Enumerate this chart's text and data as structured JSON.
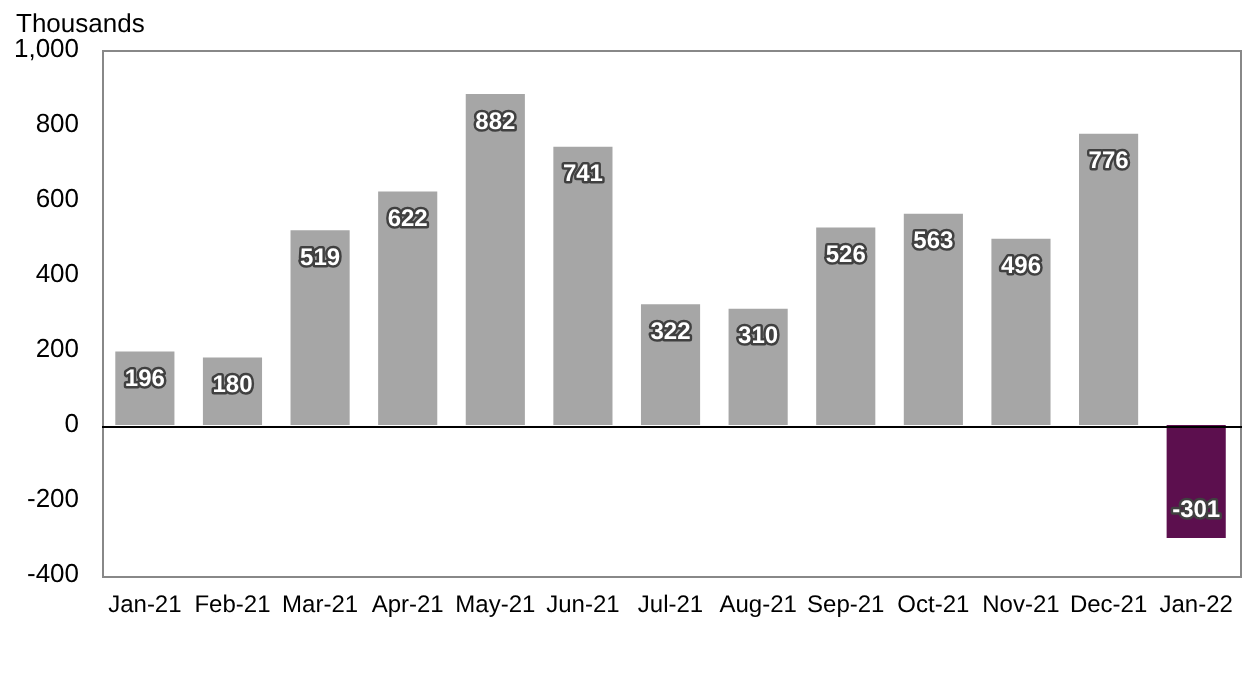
{
  "chart_data": {
    "type": "bar",
    "ylabel": "Thousands",
    "categories": [
      "Jan-21",
      "Feb-21",
      "Mar-21",
      "Apr-21",
      "May-21",
      "Jun-21",
      "Jul-21",
      "Aug-21",
      "Sep-21",
      "Oct-21",
      "Nov-21",
      "Dec-21",
      "Jan-22"
    ],
    "values": [
      196,
      180,
      519,
      622,
      882,
      741,
      322,
      310,
      526,
      563,
      496,
      776,
      -301
    ],
    "colors": [
      "#a6a6a6",
      "#a6a6a6",
      "#a6a6a6",
      "#a6a6a6",
      "#a6a6a6",
      "#a6a6a6",
      "#a6a6a6",
      "#a6a6a6",
      "#a6a6a6",
      "#a6a6a6",
      "#a6a6a6",
      "#a6a6a6",
      "#5c0f4e"
    ],
    "ylim": [
      -400,
      1000
    ],
    "yticks": [
      -400,
      -200,
      0,
      200,
      400,
      600,
      800,
      {
        "value": 1000,
        "label": "1,000"
      }
    ],
    "grid": false,
    "legend": false,
    "data_labels": true
  }
}
